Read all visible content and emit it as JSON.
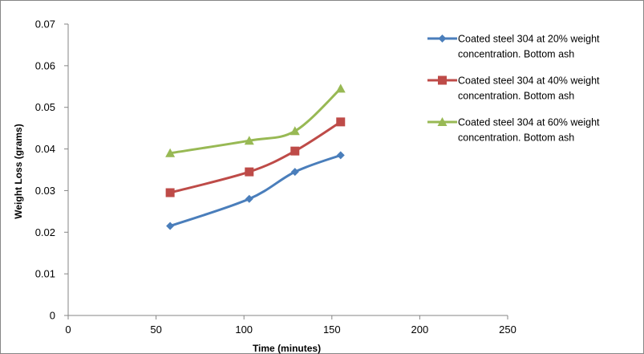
{
  "chart_data": {
    "type": "line",
    "xlabel": "Time (minutes)",
    "ylabel": "Weight Loss (grams)",
    "xlim": [
      0,
      250
    ],
    "ylim": [
      0,
      0.07
    ],
    "x_ticks": [
      "0",
      "50",
      "100",
      "150",
      "200",
      "250"
    ],
    "y_ticks": [
      "0",
      "0.01",
      "0.02",
      "0.03",
      "0.04",
      "0.05",
      "0.06",
      "0.07"
    ],
    "grid": false,
    "legend_position": "right",
    "x": [
      58,
      103,
      129,
      155
    ],
    "series": [
      {
        "name_lines": [
          "Coated steel 304 at 20% weight",
          "concentration. Bottom ash"
        ],
        "values": [
          0.0215,
          0.028,
          0.0345,
          0.0385
        ],
        "color": "#4a7ebb",
        "marker": "diamond"
      },
      {
        "name_lines": [
          "Coated steel 304 at 40% weight",
          "concentration. Bottom ash"
        ],
        "values": [
          0.0295,
          0.0345,
          0.0395,
          0.0465
        ],
        "color": "#be4b48",
        "marker": "square"
      },
      {
        "name_lines": [
          "Coated steel 304 at 60% weight",
          "concentration. Bottom ash"
        ],
        "values": [
          0.039,
          0.042,
          0.0443,
          0.0545
        ],
        "color": "#98b954",
        "marker": "triangle"
      }
    ]
  }
}
